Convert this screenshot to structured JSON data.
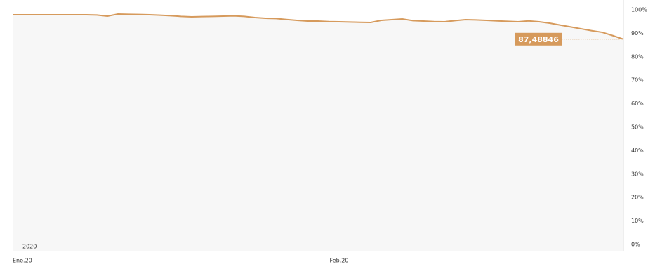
{
  "chart_data": {
    "type": "area",
    "annotation": "2020",
    "categories": [
      "Ene.20",
      null,
      null,
      null,
      null,
      null,
      null,
      null,
      null,
      null,
      null,
      null,
      null,
      null,
      null,
      null,
      null,
      null,
      null,
      null,
      null,
      null,
      null,
      null,
      null,
      null,
      null,
      null,
      null,
      null,
      null,
      "Feb.20",
      null,
      null,
      null,
      null,
      null,
      null,
      null,
      null,
      null,
      null,
      null,
      null,
      null,
      null,
      null,
      null,
      null,
      null,
      null,
      null,
      null,
      null,
      null,
      null,
      null,
      null,
      null
    ],
    "series": [
      {
        "color": "#d69a5c",
        "values": [
          97.9,
          97.9,
          97.9,
          97.9,
          97.9,
          97.9,
          97.9,
          97.9,
          97.8,
          97.3,
          98.2,
          98.1,
          98.0,
          97.9,
          97.7,
          97.5,
          97.2,
          97.0,
          97.1,
          97.2,
          97.3,
          97.4,
          97.2,
          96.7,
          96.4,
          96.3,
          95.9,
          95.5,
          95.2,
          95.2,
          95.0,
          94.9,
          94.8,
          94.7,
          94.6,
          95.5,
          95.8,
          96.1,
          95.4,
          95.2,
          95.0,
          94.9,
          95.4,
          95.8,
          95.7,
          95.5,
          95.3,
          95.1,
          94.9,
          95.3,
          94.9,
          94.3,
          93.5,
          92.7,
          91.9,
          91.1,
          90.4,
          89.0,
          87.48846
        ],
        "value_labels": [
          null,
          null,
          null,
          null,
          null,
          null,
          null,
          null,
          null,
          null,
          null,
          null,
          null,
          null,
          null,
          null,
          null,
          null,
          null,
          null,
          null,
          null,
          null,
          null,
          null,
          null,
          null,
          null,
          null,
          null,
          null,
          null,
          null,
          null,
          null,
          null,
          null,
          null,
          null,
          null,
          null,
          null,
          null,
          null,
          null,
          null,
          null,
          null,
          null,
          null,
          null,
          null,
          null,
          null,
          null,
          null,
          null,
          null,
          "87,48846"
        ]
      }
    ],
    "ylim": [
      0,
      100
    ],
    "yticks": [
      {
        "value": 0,
        "label": "0%"
      },
      {
        "value": 10,
        "label": "10%"
      },
      {
        "value": 20,
        "label": "20%"
      },
      {
        "value": 30,
        "label": "30%"
      },
      {
        "value": 40,
        "label": "40%"
      },
      {
        "value": 50,
        "label": "50%"
      },
      {
        "value": 60,
        "label": "60%"
      },
      {
        "value": 70,
        "label": "70%"
      },
      {
        "value": 80,
        "label": "80%"
      },
      {
        "value": 90,
        "label": "90%"
      },
      {
        "value": 100,
        "label": "100%"
      }
    ]
  }
}
